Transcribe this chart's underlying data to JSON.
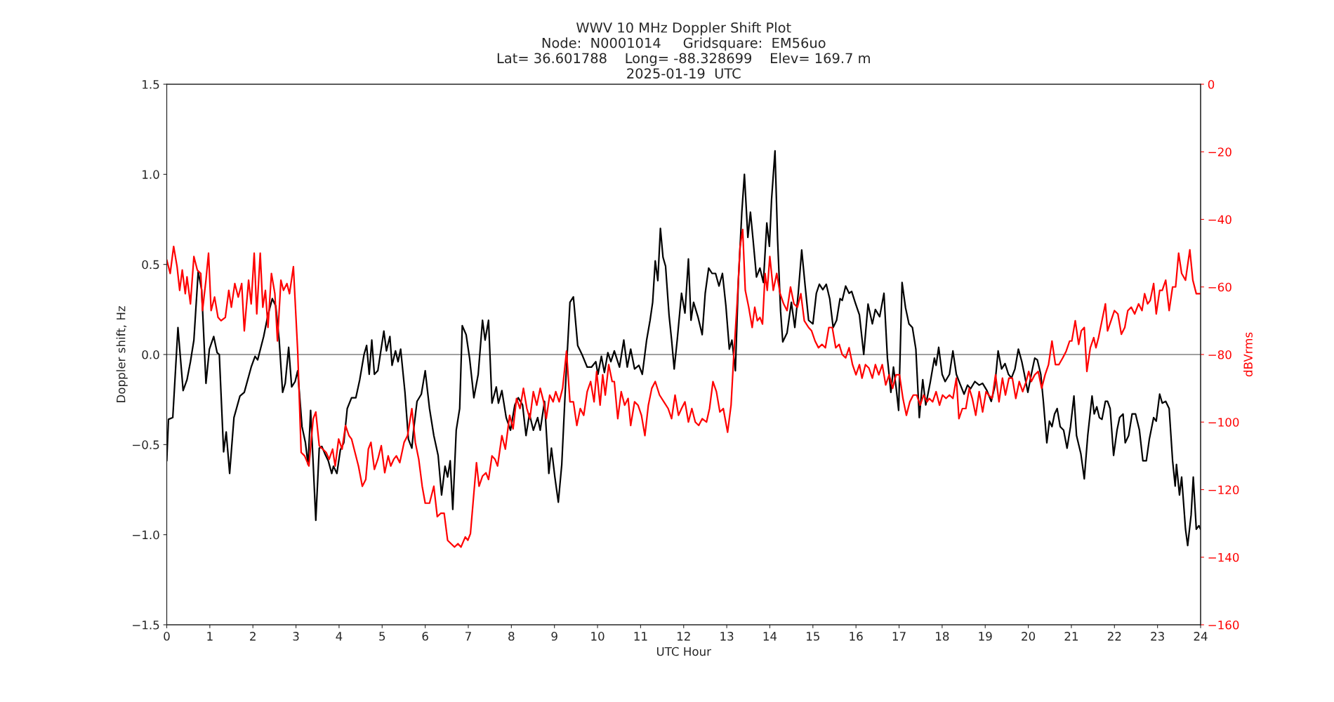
{
  "chart_data": {
    "type": "line",
    "title": "WWV 10 MHz Doppler Shift Plot\nNode:  N0001014     Gridsquare:  EM56uo\nLat= 36.601788    Long= -88.328699    Elev= 169.7 m\n2025-01-19  UTC",
    "xlabel": "UTC Hour",
    "ylabel": "Doppler shift, Hz",
    "y2label": "dBVrms",
    "xlim": [
      0,
      24
    ],
    "xticks": [
      0,
      1,
      2,
      3,
      4,
      5,
      6,
      7,
      8,
      9,
      10,
      11,
      12,
      13,
      14,
      15,
      16,
      17,
      18,
      19,
      20,
      21,
      22,
      23,
      24
    ],
    "ylim": [
      -1.5,
      1.5
    ],
    "yticks": [
      {
        "value": -1.5,
        "label": "−1.5"
      },
      {
        "value": -1.0,
        "label": "−1.0"
      },
      {
        "value": -0.5,
        "label": "−0.5"
      },
      {
        "value": 0,
        "label": "0.0"
      },
      {
        "value": 0.5,
        "label": "0.5"
      },
      {
        "value": 1.0,
        "label": "1.0"
      },
      {
        "value": 1.5,
        "label": "1.5"
      }
    ],
    "y2lim": [
      -160,
      0
    ],
    "y2ticks": [
      {
        "value": -160,
        "label": "−160"
      },
      {
        "value": -140,
        "label": "−140"
      },
      {
        "value": -120,
        "label": "−120"
      },
      {
        "value": -100,
        "label": "−100"
      },
      {
        "value": -80,
        "label": "−80"
      },
      {
        "value": -60,
        "label": "−60"
      },
      {
        "value": -40,
        "label": "−40"
      },
      {
        "value": -20,
        "label": "−20"
      },
      {
        "value": 0,
        "label": "0"
      }
    ],
    "ref_lines": [
      {
        "axis": "y",
        "value": 0,
        "color": "#808080"
      }
    ],
    "grid": false,
    "legend": false,
    "series": [
      {
        "color": "#000000",
        "x": [
          0,
          0.04,
          0.14,
          0.26,
          0.38,
          0.47,
          0.55,
          0.63,
          0.73,
          0.81,
          0.91,
          0.99,
          1.09,
          1.17,
          1.22,
          1.32,
          1.38,
          1.46,
          1.56,
          1.7,
          1.8,
          1.96,
          2.05,
          2.11,
          2.25,
          2.35,
          2.45,
          2.53,
          2.61,
          2.69,
          2.75,
          2.83,
          2.9,
          2.98,
          3.04,
          3.14,
          3.22,
          3.28,
          3.34,
          3.4,
          3.46,
          3.54,
          3.6,
          3.67,
          3.75,
          3.83,
          3.87,
          3.95,
          4.03,
          4.11,
          4.19,
          4.29,
          4.39,
          4.48,
          4.58,
          4.64,
          4.7,
          4.76,
          4.82,
          4.9,
          5.04,
          5.1,
          5.18,
          5.23,
          5.31,
          5.37,
          5.43,
          5.53,
          5.61,
          5.69,
          5.73,
          5.81,
          5.91,
          6.0,
          6.1,
          6.2,
          6.3,
          6.38,
          6.46,
          6.52,
          6.58,
          6.64,
          6.72,
          6.8,
          6.86,
          6.95,
          7.03,
          7.13,
          7.23,
          7.33,
          7.39,
          7.47,
          7.55,
          7.65,
          7.7,
          7.78,
          7.88,
          7.98,
          8.08,
          8.16,
          8.26,
          8.34,
          8.42,
          8.51,
          8.61,
          8.67,
          8.77,
          8.87,
          8.93,
          9.01,
          9.09,
          9.17,
          9.26,
          9.36,
          9.44,
          9.54,
          9.64,
          9.76,
          9.86,
          9.96,
          10.01,
          10.09,
          10.16,
          10.24,
          10.31,
          10.39,
          10.51,
          10.61,
          10.69,
          10.77,
          10.86,
          10.96,
          11.04,
          11.14,
          11.22,
          11.28,
          11.34,
          11.4,
          11.46,
          11.52,
          11.58,
          11.66,
          11.72,
          11.78,
          11.85,
          11.95,
          12.03,
          12.11,
          12.17,
          12.23,
          12.33,
          12.43,
          12.5,
          12.58,
          12.66,
          12.74,
          12.82,
          12.9,
          12.98,
          13.06,
          13.12,
          13.2,
          13.27,
          13.35,
          13.41,
          13.49,
          13.55,
          13.61,
          13.69,
          13.77,
          13.85,
          13.93,
          13.99,
          14.04,
          14.12,
          14.18,
          14.25,
          14.3,
          14.4,
          14.5,
          14.58,
          14.66,
          14.74,
          14.82,
          14.9,
          15.0,
          15.08,
          15.15,
          15.23,
          15.31,
          15.39,
          15.47,
          15.55,
          15.63,
          15.68,
          15.76,
          15.84,
          15.9,
          15.98,
          16.08,
          16.18,
          16.28,
          16.38,
          16.45,
          16.55,
          16.65,
          16.73,
          16.81,
          16.87,
          16.93,
          16.99,
          17.07,
          17.15,
          17.23,
          17.31,
          17.39,
          17.47,
          17.55,
          17.62,
          17.72,
          17.82,
          17.86,
          17.92,
          18.0,
          18.07,
          18.17,
          18.25,
          18.33,
          18.41,
          18.51,
          18.59,
          18.66,
          18.76,
          18.86,
          18.94,
          19.04,
          19.14,
          19.22,
          19.3,
          19.38,
          19.46,
          19.54,
          19.61,
          19.69,
          19.77,
          19.85,
          19.91,
          19.99,
          20.07,
          20.15,
          20.21,
          20.29,
          20.35,
          20.43,
          20.49,
          20.55,
          20.61,
          20.67,
          20.74,
          20.82,
          20.9,
          20.98,
          21.06,
          21.12,
          21.22,
          21.3,
          21.38,
          21.48,
          21.53,
          21.59,
          21.65,
          21.71,
          21.79,
          21.84,
          21.9,
          21.98,
          22.06,
          22.12,
          22.2,
          22.25,
          22.33,
          22.41,
          22.49,
          22.58,
          22.66,
          22.74,
          22.81,
          22.91,
          22.97,
          23.05,
          23.11,
          23.19,
          23.27,
          23.35,
          23.41,
          23.44,
          23.51,
          23.56,
          23.65,
          23.7,
          23.78,
          23.83,
          23.9,
          23.96,
          24.0
        ],
        "values": [
          -0.59,
          -0.36,
          -0.35,
          0.15,
          -0.2,
          -0.14,
          -0.04,
          0.08,
          0.46,
          0.36,
          -0.16,
          0.03,
          0.1,
          0.01,
          0.0,
          -0.54,
          -0.43,
          -0.66,
          -0.35,
          -0.23,
          -0.21,
          -0.07,
          -0.01,
          -0.03,
          0.1,
          0.22,
          0.31,
          0.27,
          0.08,
          -0.21,
          -0.16,
          0.04,
          -0.18,
          -0.15,
          -0.09,
          -0.4,
          -0.49,
          -0.61,
          -0.31,
          -0.61,
          -0.92,
          -0.52,
          -0.51,
          -0.55,
          -0.59,
          -0.66,
          -0.62,
          -0.66,
          -0.53,
          -0.49,
          -0.3,
          -0.24,
          -0.24,
          -0.14,
          0.0,
          0.05,
          -0.11,
          0.08,
          -0.11,
          -0.09,
          0.13,
          0.02,
          0.1,
          -0.06,
          0.02,
          -0.04,
          0.03,
          -0.21,
          -0.47,
          -0.52,
          -0.42,
          -0.26,
          -0.22,
          -0.09,
          -0.3,
          -0.45,
          -0.56,
          -0.78,
          -0.62,
          -0.68,
          -0.59,
          -0.86,
          -0.42,
          -0.3,
          0.16,
          0.11,
          -0.02,
          -0.24,
          -0.11,
          0.19,
          0.08,
          0.19,
          -0.27,
          -0.18,
          -0.27,
          -0.2,
          -0.35,
          -0.42,
          -0.28,
          -0.24,
          -0.28,
          -0.45,
          -0.33,
          -0.42,
          -0.35,
          -0.42,
          -0.26,
          -0.66,
          -0.52,
          -0.68,
          -0.82,
          -0.61,
          -0.16,
          0.29,
          0.32,
          0.05,
          0.0,
          -0.07,
          -0.07,
          -0.04,
          -0.11,
          -0.01,
          -0.1,
          0.01,
          -0.04,
          0.02,
          -0.07,
          0.08,
          -0.07,
          0.03,
          -0.08,
          -0.06,
          -0.11,
          0.08,
          0.19,
          0.29,
          0.52,
          0.41,
          0.7,
          0.54,
          0.49,
          0.22,
          0.08,
          -0.08,
          0.08,
          0.34,
          0.23,
          0.53,
          0.19,
          0.29,
          0.21,
          0.11,
          0.34,
          0.48,
          0.45,
          0.45,
          0.38,
          0.45,
          0.27,
          0.03,
          0.08,
          -0.09,
          0.41,
          0.79,
          1.0,
          0.65,
          0.79,
          0.64,
          0.43,
          0.48,
          0.4,
          0.73,
          0.6,
          0.86,
          1.13,
          0.64,
          0.24,
          0.07,
          0.12,
          0.29,
          0.15,
          0.34,
          0.58,
          0.38,
          0.19,
          0.17,
          0.34,
          0.39,
          0.36,
          0.39,
          0.31,
          0.15,
          0.19,
          0.31,
          0.3,
          0.38,
          0.34,
          0.35,
          0.29,
          0.22,
          0.0,
          0.28,
          0.17,
          0.25,
          0.21,
          0.34,
          -0.02,
          -0.21,
          -0.07,
          -0.18,
          -0.31,
          0.4,
          0.26,
          0.17,
          0.15,
          0.03,
          -0.35,
          -0.14,
          -0.28,
          -0.16,
          -0.02,
          -0.06,
          0.04,
          -0.11,
          -0.15,
          -0.11,
          0.02,
          -0.11,
          -0.16,
          -0.22,
          -0.17,
          -0.19,
          -0.15,
          -0.17,
          -0.16,
          -0.2,
          -0.26,
          -0.18,
          0.02,
          -0.08,
          -0.05,
          -0.11,
          -0.13,
          -0.08,
          0.03,
          -0.04,
          -0.11,
          -0.21,
          -0.11,
          -0.02,
          -0.03,
          -0.11,
          -0.26,
          -0.49,
          -0.37,
          -0.4,
          -0.33,
          -0.3,
          -0.4,
          -0.42,
          -0.52,
          -0.4,
          -0.23,
          -0.45,
          -0.55,
          -0.69,
          -0.45,
          -0.23,
          -0.33,
          -0.29,
          -0.35,
          -0.36,
          -0.26,
          -0.26,
          -0.3,
          -0.56,
          -0.42,
          -0.35,
          -0.33,
          -0.49,
          -0.45,
          -0.33,
          -0.33,
          -0.42,
          -0.59,
          -0.59,
          -0.47,
          -0.35,
          -0.37,
          -0.22,
          -0.27,
          -0.26,
          -0.3,
          -0.59,
          -0.73,
          -0.61,
          -0.78,
          -0.68,
          -0.97,
          -1.06,
          -0.89,
          -0.68,
          -0.97,
          -0.95,
          -0.97
        ]
      },
      {
        "color": "#ff0000",
        "axis": "y2",
        "x": [
          0,
          0.08,
          0.16,
          0.24,
          0.3,
          0.36,
          0.43,
          0.47,
          0.55,
          0.63,
          0.71,
          0.79,
          0.83,
          0.91,
          0.97,
          1.03,
          1.11,
          1.19,
          1.26,
          1.36,
          1.44,
          1.5,
          1.58,
          1.66,
          1.74,
          1.8,
          1.9,
          1.96,
          2.03,
          2.09,
          2.17,
          2.23,
          2.29,
          2.35,
          2.43,
          2.51,
          2.57,
          2.65,
          2.71,
          2.79,
          2.85,
          2.94,
          3.04,
          3.12,
          3.2,
          3.3,
          3.4,
          3.46,
          3.54,
          3.62,
          3.7,
          3.77,
          3.85,
          3.91,
          3.99,
          4.07,
          4.15,
          4.23,
          4.29,
          4.37,
          4.45,
          4.54,
          4.62,
          4.68,
          4.74,
          4.82,
          4.9,
          4.98,
          5.06,
          5.14,
          5.2,
          5.27,
          5.33,
          5.41,
          5.51,
          5.59,
          5.69,
          5.77,
          5.85,
          5.93,
          6.0,
          6.1,
          6.2,
          6.28,
          6.36,
          6.44,
          6.52,
          6.6,
          6.68,
          6.76,
          6.83,
          6.93,
          6.99,
          7.05,
          7.11,
          7.19,
          7.25,
          7.33,
          7.41,
          7.47,
          7.55,
          7.62,
          7.68,
          7.78,
          7.86,
          7.96,
          8.04,
          8.12,
          8.2,
          8.28,
          8.36,
          8.43,
          8.51,
          8.59,
          8.67,
          8.75,
          8.81,
          8.89,
          8.97,
          9.03,
          9.11,
          9.19,
          9.28,
          9.36,
          9.44,
          9.52,
          9.6,
          9.68,
          9.76,
          9.84,
          9.92,
          9.98,
          10.06,
          10.12,
          10.18,
          10.26,
          10.34,
          10.39,
          10.47,
          10.55,
          10.63,
          10.71,
          10.77,
          10.86,
          10.94,
          11.02,
          11.1,
          11.18,
          11.26,
          11.34,
          11.44,
          11.54,
          11.64,
          11.72,
          11.8,
          11.88,
          11.95,
          12.03,
          12.11,
          12.19,
          12.27,
          12.35,
          12.43,
          12.53,
          12.6,
          12.68,
          12.76,
          12.84,
          12.92,
          13.02,
          13.1,
          13.16,
          13.24,
          13.31,
          13.37,
          13.43,
          13.51,
          13.59,
          13.65,
          13.71,
          13.77,
          13.83,
          13.89,
          13.94,
          14.0,
          14.08,
          14.16,
          14.24,
          14.32,
          14.4,
          14.48,
          14.56,
          14.64,
          14.72,
          14.8,
          14.9,
          14.97,
          15.05,
          15.13,
          15.21,
          15.29,
          15.37,
          15.45,
          15.53,
          15.61,
          15.68,
          15.76,
          15.84,
          15.92,
          16.0,
          16.08,
          16.14,
          16.22,
          16.3,
          16.38,
          16.45,
          16.53,
          16.61,
          16.69,
          16.77,
          16.85,
          16.93,
          17.01,
          17.09,
          17.17,
          17.25,
          17.33,
          17.41,
          17.49,
          17.57,
          17.65,
          17.7,
          17.78,
          17.86,
          17.94,
          18.01,
          18.09,
          18.17,
          18.25,
          18.33,
          18.39,
          18.47,
          18.55,
          18.63,
          18.7,
          18.78,
          18.86,
          18.94,
          19.02,
          19.08,
          19.16,
          19.24,
          19.32,
          19.4,
          19.47,
          19.55,
          19.63,
          19.71,
          19.79,
          19.87,
          19.95,
          20.01,
          20.07,
          20.15,
          20.23,
          20.31,
          20.39,
          20.47,
          20.55,
          20.63,
          20.71,
          20.8,
          20.88,
          20.96,
          21.01,
          21.09,
          21.17,
          21.23,
          21.3,
          21.36,
          21.44,
          21.52,
          21.57,
          21.63,
          21.71,
          21.79,
          21.84,
          21.92,
          22.0,
          22.08,
          22.16,
          22.24,
          22.31,
          22.39,
          22.47,
          22.56,
          22.64,
          22.7,
          22.77,
          22.83,
          22.91,
          22.97,
          23.05,
          23.11,
          23.19,
          23.27,
          23.35,
          23.42,
          23.49,
          23.56,
          23.65,
          23.75,
          23.82,
          23.9,
          24.0
        ],
        "values": [
          -52,
          -56,
          -48,
          -54,
          -61,
          -55,
          -62,
          -57,
          -65,
          -51,
          -55,
          -56,
          -67,
          -58,
          -50,
          -67,
          -63,
          -69,
          -70,
          -69,
          -61,
          -66,
          -59,
          -63,
          -59,
          -73,
          -58,
          -65,
          -50,
          -68,
          -50,
          -66,
          -61,
          -72,
          -56,
          -62,
          -76,
          -58,
          -61,
          -59,
          -62,
          -54,
          -79,
          -109,
          -110,
          -113,
          -99,
          -97,
          -107,
          -108,
          -109,
          -111,
          -108,
          -113,
          -105,
          -108,
          -101,
          -104,
          -105,
          -109,
          -113,
          -119,
          -117,
          -108,
          -106,
          -114,
          -111,
          -107,
          -115,
          -110,
          -113,
          -111,
          -110,
          -112,
          -106,
          -104,
          -96,
          -106,
          -111,
          -119,
          -124,
          -124,
          -119,
          -128,
          -127,
          -127,
          -135,
          -136,
          -137,
          -136,
          -137,
          -134,
          -135,
          -133,
          -124,
          -112,
          -119,
          -116,
          -115,
          -117,
          -110,
          -111,
          -113,
          -104,
          -108,
          -98,
          -102,
          -93,
          -96,
          -90,
          -96,
          -99,
          -91,
          -95,
          -90,
          -94,
          -99,
          -92,
          -94,
          -91,
          -94,
          -90,
          -79,
          -94,
          -94,
          -101,
          -96,
          -98,
          -91,
          -88,
          -94,
          -85,
          -95,
          -86,
          -92,
          -83,
          -88,
          -88,
          -99,
          -91,
          -95,
          -93,
          -101,
          -94,
          -95,
          -98,
          -104,
          -95,
          -90,
          -88,
          -92,
          -94,
          -96,
          -99,
          -92,
          -98,
          -96,
          -94,
          -100,
          -96,
          -100,
          -101,
          -99,
          -100,
          -96,
          -88,
          -91,
          -97,
          -96,
          -103,
          -95,
          -81,
          -65,
          -48,
          -43,
          -61,
          -66,
          -72,
          -66,
          -70,
          -69,
          -71,
          -56,
          -61,
          -51,
          -61,
          -56,
          -62,
          -65,
          -67,
          -60,
          -65,
          -66,
          -62,
          -70,
          -72,
          -73,
          -76,
          -78,
          -77,
          -78,
          -72,
          -72,
          -78,
          -77,
          -80,
          -81,
          -78,
          -83,
          -86,
          -83,
          -87,
          -83,
          -84,
          -87,
          -83,
          -86,
          -83,
          -89,
          -86,
          -90,
          -86,
          -86,
          -93,
          -98,
          -94,
          -92,
          -92,
          -95,
          -92,
          -94,
          -93,
          -94,
          -91,
          -95,
          -92,
          -93,
          -92,
          -93,
          -87,
          -99,
          -96,
          -96,
          -90,
          -93,
          -98,
          -91,
          -97,
          -91,
          -92,
          -93,
          -86,
          -94,
          -87,
          -92,
          -87,
          -87,
          -93,
          -88,
          -91,
          -88,
          -85,
          -88,
          -86,
          -85,
          -90,
          -86,
          -83,
          -76,
          -83,
          -83,
          -81,
          -79,
          -76,
          -76,
          -70,
          -77,
          -73,
          -72,
          -85,
          -78,
          -75,
          -78,
          -75,
          -70,
          -65,
          -73,
          -70,
          -67,
          -68,
          -74,
          -72,
          -67,
          -66,
          -68,
          -65,
          -67,
          -62,
          -65,
          -64,
          -59,
          -68,
          -61,
          -61,
          -58,
          -67,
          -60,
          -60,
          -50,
          -56,
          -58,
          -49,
          -58,
          -62,
          -62
        ]
      }
    ]
  }
}
